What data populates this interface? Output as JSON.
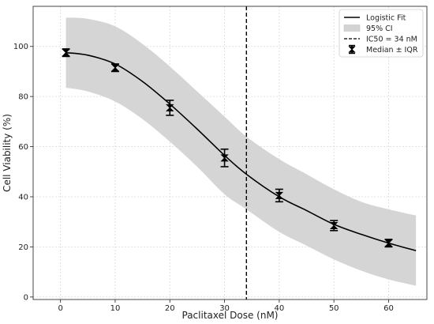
{
  "chart_data": {
    "type": "line",
    "xlabel": "Paclitaxel Dose (nM)",
    "ylabel": "Cell Viability (%)",
    "xlim": [
      -5,
      67
    ],
    "ylim": [
      -1,
      116
    ],
    "xticks": [
      0,
      10,
      20,
      30,
      40,
      50,
      60
    ],
    "yticks": [
      0,
      20,
      40,
      60,
      80,
      100
    ],
    "grid": true,
    "legend_position": "top-right",
    "ic50": 34,
    "fit_curve": {
      "name": "Logistic Fit",
      "x": [
        1,
        5,
        10,
        15,
        20,
        25,
        30,
        34,
        40,
        45,
        50,
        55,
        60,
        65
      ],
      "y": [
        97.5,
        96.5,
        93,
        86,
        77,
        67,
        56.5,
        49,
        40,
        34.5,
        29,
        25,
        21.5,
        18.5
      ]
    },
    "ci_band": {
      "name": "95% CI",
      "x": [
        1,
        5,
        10,
        15,
        20,
        25,
        30,
        34,
        40,
        45,
        50,
        55,
        60,
        65
      ],
      "upper": [
        111.5,
        111,
        108,
        101,
        92,
        82,
        72,
        64,
        55,
        49,
        43,
        38,
        35,
        32.5
      ],
      "lower": [
        83.5,
        82,
        78,
        71,
        62,
        52,
        41,
        35,
        26,
        20.5,
        15,
        10.5,
        7,
        4.5
      ]
    },
    "median_iqr": {
      "name": "Median ± IQR",
      "x": [
        1,
        10,
        20,
        30,
        40,
        50,
        60
      ],
      "median": [
        97.5,
        91.5,
        75.5,
        55.5,
        40.5,
        28.5,
        21.5
      ],
      "err_low": [
        1.5,
        1.5,
        3,
        3.5,
        2.5,
        2,
        1.5
      ],
      "err_high": [
        1.5,
        1.5,
        3,
        3.5,
        2.5,
        2,
        1.5
      ]
    },
    "legend": [
      "Logistic Fit",
      "95% CI",
      "IC50 = 34 nM",
      "Median ± IQR"
    ],
    "colors": {
      "fit": "#000000",
      "band": "#d3d3d3",
      "ic50": "#000000",
      "markers": "#000000"
    }
  }
}
